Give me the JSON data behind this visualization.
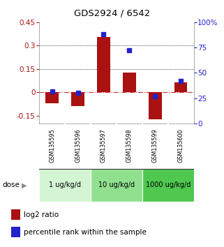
{
  "title": "GDS2924 / 6542",
  "samples": [
    "GSM135595",
    "GSM135596",
    "GSM135597",
    "GSM135598",
    "GSM135599",
    "GSM135600"
  ],
  "log2_ratio": [
    -0.07,
    -0.09,
    0.355,
    0.125,
    -0.175,
    0.065
  ],
  "percentile_rank": [
    32,
    30,
    88,
    72,
    27,
    42
  ],
  "dose_groups": [
    {
      "label": "1 ug/kg/d",
      "color": "#d4f5d4"
    },
    {
      "label": "10 ug/kg/d",
      "color": "#90e090"
    },
    {
      "label": "1000 ug/kg/d",
      "color": "#50c850"
    }
  ],
  "bar_color": "#aa1111",
  "dot_color": "#2222cc",
  "zero_line_color": "#cc3333",
  "left_ylim": [
    -0.2,
    0.45
  ],
  "right_ylim": [
    0,
    100
  ],
  "left_yticks": [
    -0.15,
    0.0,
    0.15,
    0.3,
    0.45
  ],
  "right_yticks": [
    0,
    25,
    50,
    75,
    100
  ],
  "dotted_lines": [
    0.15,
    0.3
  ],
  "background_color": "#ffffff",
  "legend_items": [
    "log2 ratio",
    "percentile rank within the sample"
  ],
  "sample_bg": "#c8c8c8",
  "sample_border": "#ffffff"
}
